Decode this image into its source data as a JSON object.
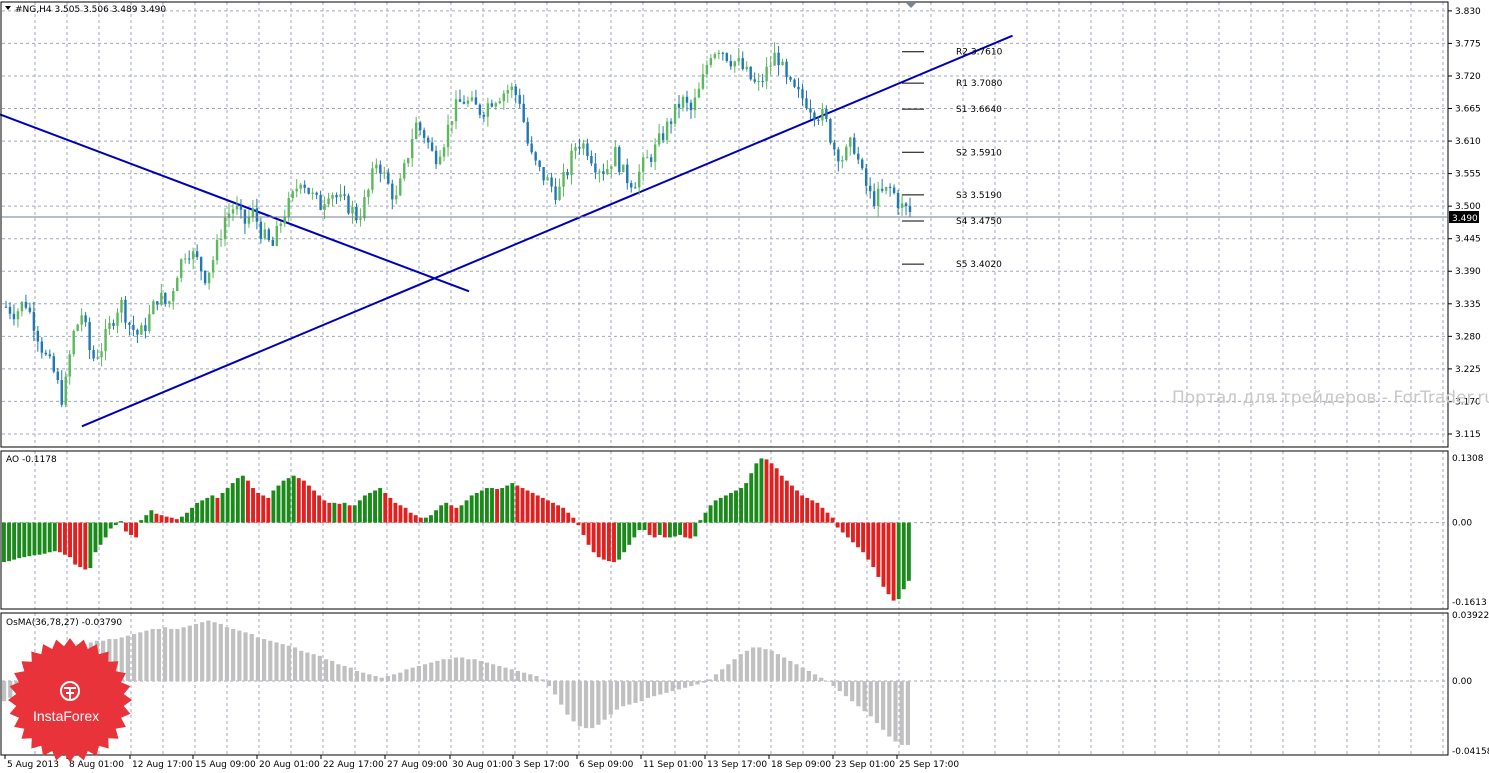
{
  "header": {
    "symbol_line": "#NG,H4  3.505 3.506 3.489 3.490",
    "ao_label": "AO -0.1178",
    "osma_label": "OsMA(36,78,27) -0.03790",
    "current_price": "3.490"
  },
  "watermark": "Портал для трейдеров - ForTrader.ru",
  "logo": {
    "name": "InstaForex",
    "color": "#e8333a"
  },
  "colors": {
    "bull_candle": "#5cb85c",
    "bear_candle": "#1f77b4",
    "trendline": "#0000bb",
    "ao_up": "#1a8a1a",
    "ao_down": "#e32020",
    "osma": "#c0c0c0",
    "grid": "#a0a8b8"
  },
  "chart_data": [
    {
      "type": "candlestick",
      "symbol": "#NG",
      "timeframe": "H4",
      "ohlc_last": {
        "open": 3.505,
        "high": 3.506,
        "low": 3.489,
        "close": 3.49
      },
      "ylim": [
        3.093,
        3.845
      ],
      "yticks": [
        "3.830",
        "3.775",
        "3.720",
        "3.665",
        "3.610",
        "3.555",
        "3.500",
        "3.445",
        "3.390",
        "3.335",
        "3.280",
        "3.225",
        "3.170",
        "3.115"
      ],
      "xticks": [
        "5 Aug 2013",
        "8 Aug 01:00",
        "12 Aug 17:00",
        "15 Aug 09:00",
        "20 Aug 01:00",
        "22 Aug 17:00",
        "27 Aug 09:00",
        "30 Aug 01:00",
        "3 Sep 17:00",
        "6 Sep 09:00",
        "11 Sep 01:00",
        "13 Sep 17:00",
        "18 Sep 09:00",
        "23 Sep 01:00",
        "25 Sep 17:00"
      ],
      "close_path": [
        3.33,
        3.32,
        3.34,
        3.3,
        3.25,
        3.22,
        3.17,
        3.28,
        3.32,
        3.24,
        3.26,
        3.3,
        3.34,
        3.3,
        3.28,
        3.31,
        3.35,
        3.33,
        3.39,
        3.43,
        3.41,
        3.38,
        3.42,
        3.48,
        3.5,
        3.47,
        3.49,
        3.45,
        3.43,
        3.48,
        3.51,
        3.55,
        3.52,
        3.5,
        3.53,
        3.51,
        3.5,
        3.48,
        3.52,
        3.58,
        3.54,
        3.51,
        3.57,
        3.64,
        3.62,
        3.58,
        3.61,
        3.66,
        3.68,
        3.67,
        3.66,
        3.68,
        3.69,
        3.7,
        3.68,
        3.59,
        3.56,
        3.54,
        3.52,
        3.56,
        3.61,
        3.6,
        3.57,
        3.56,
        3.59,
        3.55,
        3.54,
        3.57,
        3.59,
        3.62,
        3.65,
        3.68,
        3.66,
        3.7,
        3.76,
        3.77,
        3.75,
        3.74,
        3.72,
        3.7,
        3.73,
        3.76,
        3.71,
        3.69,
        3.68,
        3.66,
        3.65,
        3.6,
        3.58,
        3.61,
        3.55,
        3.51,
        3.52,
        3.53,
        3.5,
        3.49
      ],
      "pivot_levels": [
        {
          "label": "R2 3.7610",
          "value": 3.761
        },
        {
          "label": "R1 3.7080",
          "value": 3.708
        },
        {
          "label": "S1 3.6640",
          "value": 3.664
        },
        {
          "label": "S2 3.5910",
          "value": 3.591
        },
        {
          "label": "S3 3.5190",
          "value": 3.519
        },
        {
          "label": "S4 3.4750",
          "value": 3.475
        },
        {
          "label": "S5 3.4020",
          "value": 3.402
        }
      ],
      "trendlines": [
        {
          "from": [
            0,
            3.655
          ],
          "to": [
            0.315,
            3.356
          ]
        },
        {
          "from": [
            0.055,
            3.128
          ],
          "to": [
            0.68,
            3.788
          ]
        }
      ]
    },
    {
      "type": "bar",
      "indicator": "AO",
      "current": -0.1178,
      "ylim": [
        -0.175,
        0.145
      ],
      "yticks": [
        "0.1308",
        "0.00",
        "-0.1613"
      ],
      "values": [
        -0.08,
        -0.078,
        -0.075,
        -0.072,
        -0.07,
        -0.068,
        -0.066,
        -0.065,
        -0.063,
        -0.06,
        -0.058,
        -0.06,
        -0.065,
        -0.07,
        -0.085,
        -0.09,
        -0.095,
        -0.092,
        -0.06,
        -0.045,
        -0.03,
        -0.012,
        -0.005,
        0.003,
        -0.018,
        -0.025,
        -0.03,
        0.005,
        0.015,
        0.025,
        0.018,
        0.015,
        0.012,
        0.01,
        0.007,
        0.012,
        0.02,
        0.03,
        0.04,
        0.045,
        0.05,
        0.055,
        0.05,
        0.06,
        0.07,
        0.08,
        0.09,
        0.095,
        0.085,
        0.07,
        0.06,
        0.055,
        0.05,
        0.065,
        0.075,
        0.085,
        0.09,
        0.095,
        0.09,
        0.085,
        0.075,
        0.065,
        0.055,
        0.045,
        0.04,
        0.04,
        0.038,
        0.04,
        0.035,
        0.035,
        0.045,
        0.055,
        0.06,
        0.065,
        0.07,
        0.06,
        0.05,
        0.04,
        0.035,
        0.03,
        0.02,
        0.015,
        0.01,
        0.01,
        0.015,
        0.025,
        0.035,
        0.04,
        0.035,
        0.03,
        0.035,
        0.045,
        0.055,
        0.06,
        0.065,
        0.07,
        0.07,
        0.068,
        0.07,
        0.075,
        0.08,
        0.075,
        0.07,
        0.065,
        0.06,
        0.055,
        0.05,
        0.045,
        0.04,
        0.035,
        0.03,
        0.02,
        0.01,
        -0.005,
        -0.025,
        -0.045,
        -0.06,
        -0.07,
        -0.075,
        -0.078,
        -0.08,
        -0.075,
        -0.06,
        -0.045,
        -0.03,
        -0.015,
        -0.015,
        -0.025,
        -0.03,
        -0.025,
        -0.03,
        -0.03,
        -0.028,
        -0.025,
        -0.03,
        -0.032,
        -0.028,
        0.005,
        0.02,
        0.035,
        0.045,
        0.05,
        0.055,
        0.06,
        0.065,
        0.07,
        0.08,
        0.1,
        0.12,
        0.13,
        0.128,
        0.12,
        0.11,
        0.095,
        0.085,
        0.075,
        0.065,
        0.055,
        0.05,
        0.045,
        0.04,
        0.03,
        0.02,
        0.01,
        -0.01,
        -0.02,
        -0.03,
        -0.04,
        -0.05,
        -0.06,
        -0.075,
        -0.09,
        -0.11,
        -0.13,
        -0.145,
        -0.158,
        -0.155,
        -0.135,
        -0.118
      ]
    },
    {
      "type": "histogram",
      "indicator": "OsMA",
      "params": "36,78,27",
      "current": -0.0379,
      "ylim": [
        -0.044,
        0.0405
      ],
      "yticks": [
        "0.03922",
        "0.00",
        "-0.04158"
      ],
      "values": [
        -0.012,
        -0.01,
        -0.006,
        -0.002,
        0.003,
        0.008,
        0.013,
        0.016,
        0.018,
        0.02,
        0.021,
        0.021,
        0.022,
        0.022,
        0.023,
        0.024,
        0.024,
        0.025,
        0.025,
        0.026,
        0.027,
        0.028,
        0.029,
        0.03,
        0.031,
        0.031,
        0.032,
        0.031,
        0.031,
        0.032,
        0.033,
        0.034,
        0.035,
        0.036,
        0.035,
        0.034,
        0.032,
        0.031,
        0.03,
        0.029,
        0.028,
        0.026,
        0.025,
        0.024,
        0.023,
        0.022,
        0.021,
        0.02,
        0.018,
        0.017,
        0.016,
        0.015,
        0.013,
        0.012,
        0.01,
        0.009,
        0.008,
        0.006,
        0.005,
        0.004,
        0.003,
        0.002,
        0.003,
        0.004,
        0.005,
        0.007,
        0.008,
        0.009,
        0.01,
        0.011,
        0.012,
        0.013,
        0.013,
        0.014,
        0.014,
        0.013,
        0.013,
        0.012,
        0.011,
        0.01,
        0.009,
        0.008,
        0.007,
        0.006,
        0.005,
        0.004,
        0.003,
        0.001,
        -0.003,
        -0.008,
        -0.014,
        -0.02,
        -0.024,
        -0.027,
        -0.028,
        -0.028,
        -0.026,
        -0.023,
        -0.02,
        -0.017,
        -0.015,
        -0.014,
        -0.013,
        -0.012,
        -0.01,
        -0.009,
        -0.008,
        -0.007,
        -0.006,
        -0.005,
        -0.004,
        -0.003,
        -0.002,
        -0.001,
        0.001,
        0.004,
        0.007,
        0.01,
        0.013,
        0.016,
        0.018,
        0.02,
        0.02,
        0.019,
        0.018,
        0.016,
        0.014,
        0.012,
        0.01,
        0.008,
        0.006,
        0.004,
        0.002,
        0.0,
        -0.003,
        -0.006,
        -0.009,
        -0.012,
        -0.015,
        -0.018,
        -0.021,
        -0.025,
        -0.029,
        -0.033,
        -0.036,
        -0.038,
        -0.038
      ]
    }
  ]
}
